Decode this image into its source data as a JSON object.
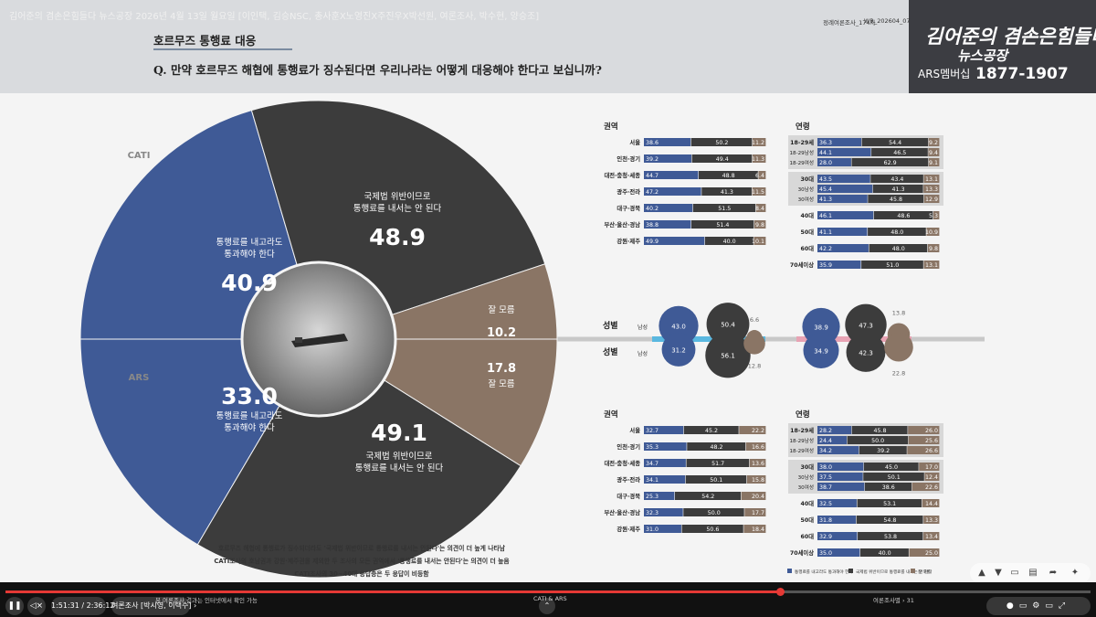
{
  "top_info": "김어준의 겸손은힘들다 뉴스공장 2026년 4월 13일 월요일 [이인택, 김승NSC, 총사훈X노영진X주진우X박선원, 여론조사, 박수현, 양승조]",
  "report_code": "정례여론조사_174차",
  "report_id": "WR_202604_07",
  "logo": {
    "line1": "김어준의 겸손은힘들다",
    "line2": "뉴스공장",
    "line3": "ARS멤버십",
    "line4": "1877-1907"
  },
  "section_title": "호르무즈 통행료 대응",
  "question": "Q. 만약 호르무즈 해협에 통행료가 징수된다면 우리나라는 어떻게 대응해야 한다고 보십니까?",
  "colors": {
    "blue": "#3f5a96",
    "dark": "#3c3c3c",
    "brown": "#8a7565"
  },
  "icons": [
    "play-pause-icon",
    "mute-icon",
    "settings-icon",
    "fullscreen-icon",
    "like-icon",
    "dislike-icon",
    "share-icon",
    "comment-icon"
  ],
  "chart_data": [
    {
      "type": "pie",
      "name": "CATI",
      "slices": [
        {
          "label_lines": [
            "통행료를 내고라도",
            "통과해야 한다"
          ],
          "value": 40.9,
          "value_label": "40.9",
          "color": "#3f5a96"
        },
        {
          "label_lines": [
            "국제법 위반이므로",
            "통행료를 내서는 안 된다"
          ],
          "value": 48.9,
          "value_label": "48.9",
          "color": "#3c3c3c"
        },
        {
          "label_lines": [
            "잘 모름"
          ],
          "value": 10.2,
          "value_label": "10.2",
          "color": "#8a7565"
        }
      ]
    },
    {
      "type": "pie",
      "name": "ARS",
      "slices": [
        {
          "label_lines": [
            "통행료를 내고라도",
            "통과해야 한다"
          ],
          "value": 33.0,
          "value_label": "33.0",
          "color": "#3f5a96"
        },
        {
          "label_lines": [
            "국제법 위반이므로",
            "통행료를 내서는 안 된다"
          ],
          "value": 49.1,
          "value_label": "49.1",
          "color": "#3c3c3c"
        },
        {
          "label_lines": [
            "잘 모름"
          ],
          "value": 17.8,
          "value_label": "17.8",
          "color": "#8a7565"
        }
      ]
    },
    {
      "type": "bar",
      "stacked": true,
      "title": "권역",
      "categories": [
        "서울",
        "인천·경기",
        "대전·충청·세종",
        "광주·전라",
        "대구·경북",
        "부산·울산·경남",
        "강원·제주"
      ],
      "series": [
        [
          38.6,
          50.2,
          11.2
        ],
        [
          39.2,
          49.4,
          11.3
        ],
        [
          44.7,
          48.8,
          6.4
        ],
        [
          47.2,
          41.3,
          11.5
        ],
        [
          40.2,
          51.5,
          8.4
        ],
        [
          38.8,
          51.4,
          9.8
        ],
        [
          49.9,
          40.0,
          10.1
        ]
      ]
    },
    {
      "type": "bar",
      "stacked": true,
      "title": "연령",
      "categories": [
        "18-29세",
        "18-29남성",
        "18-29여성",
        "30대",
        "30남성",
        "30여성",
        "40대",
        "50대",
        "60대",
        "70세이상"
      ],
      "series": [
        [
          36.3,
          54.4,
          9.2
        ],
        [
          44.1,
          46.5,
          9.4
        ],
        [
          28.0,
          62.9,
          9.1
        ],
        [
          43.5,
          43.4,
          13.1
        ],
        [
          45.4,
          41.3,
          13.3
        ],
        [
          41.3,
          45.8,
          12.9
        ],
        [
          46.1,
          48.6,
          5.3
        ],
        [
          41.1,
          48.0,
          10.9
        ],
        [
          42.2,
          48.0,
          9.8
        ],
        [
          35.9,
          51.0,
          13.1
        ]
      ]
    },
    {
      "type": "bar",
      "stacked": true,
      "title": "권역",
      "categories": [
        "서울",
        "인천·경기",
        "대전·충청·세종",
        "광주·전라",
        "대구·경북",
        "부산·울산·경남",
        "강원·제주"
      ],
      "series": [
        [
          32.7,
          45.2,
          22.2
        ],
        [
          35.3,
          48.2,
          16.6
        ],
        [
          34.7,
          51.7,
          13.6
        ],
        [
          34.1,
          50.1,
          15.8
        ],
        [
          25.3,
          54.2,
          20.4
        ],
        [
          32.3,
          50.0,
          17.7
        ],
        [
          31.0,
          50.6,
          18.4
        ]
      ]
    },
    {
      "type": "bar",
      "stacked": true,
      "title": "연령",
      "categories": [
        "18-29세",
        "18-29남성",
        "18-29여성",
        "30대",
        "30남성",
        "30여성",
        "40대",
        "50대",
        "60대",
        "70세이상"
      ],
      "series": [
        [
          28.2,
          45.8,
          26.0
        ],
        [
          24.4,
          50.0,
          25.6
        ],
        [
          34.2,
          39.2,
          26.6
        ],
        [
          38.0,
          45.0,
          17.0
        ],
        [
          37.5,
          50.1,
          12.4
        ],
        [
          38.7,
          38.6,
          22.6
        ],
        [
          32.5,
          53.1,
          14.4
        ],
        [
          31.8,
          54.8,
          13.3
        ],
        [
          32.9,
          53.8,
          13.4
        ],
        [
          35.0,
          40.0,
          25.0
        ]
      ]
    },
    {
      "type": "scatter",
      "title": "성별",
      "sublabel": "남성",
      "cati": [
        43.0,
        50.4,
        6.6
      ],
      "ars": [
        31.2,
        56.1,
        12.8
      ]
    },
    {
      "type": "scatter",
      "title": "성별",
      "sublabel": "남성",
      "cati": [
        38.9,
        47.3,
        13.8
      ],
      "ars": [
        34.9,
        42.3,
        22.8
      ]
    }
  ],
  "gender_label_bottom": "성별",
  "gender_sub_bottom": "남성",
  "legend": [
    {
      "label": "통행료를 내고라도 통과해야 한다",
      "color": "#3f5a96"
    },
    {
      "label": "국제법 위반이므로 통행료를 내서는 안 된다",
      "color": "#3c3c3c"
    },
    {
      "label": "잘 모름",
      "color": "#8a7565"
    }
  ],
  "summary": [
    "호르무즈 해협에 통행료가 징수되더라도 '국제법 위반이므로 통행료를 내서는 안된다'는 의견이 더 높게 나타남",
    "CATI조사의 호남권과 강원·제주권을 제외한 두 조사의 모든 권역에서 '통행료를 내서는 안된다'는 의견이 더 높음",
    "CATI조사의 30~40대 응답층은 두 응답이 비등함"
  ],
  "player": {
    "time": "1:51:31 / 2:36:12",
    "chapter": "여론조사 [박시영, 이택수] ›",
    "center_label": "CATI & ARS",
    "right_label": "여론조사별 › 31",
    "ticker": "본 여론조사 결과는 인터넷에서 확인 가능"
  }
}
